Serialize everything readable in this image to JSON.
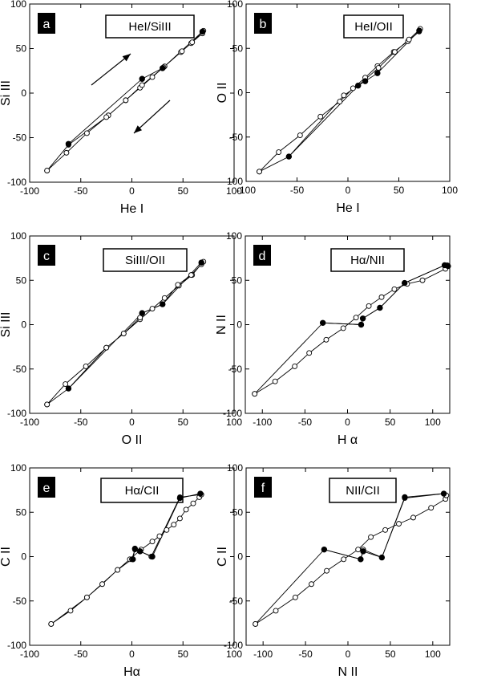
{
  "chart_data": [
    {
      "type": "scatter",
      "panel": "a",
      "title": "HeI/SiIII",
      "xlabel": "He I",
      "ylabel": "Si III",
      "xlim": [
        -100,
        100
      ],
      "ylim": [
        -100,
        100
      ],
      "xticks": [
        -100,
        -50,
        0,
        50,
        100
      ],
      "yticks": [
        -100,
        -50,
        0,
        50,
        100
      ],
      "arrows": [
        "up-right",
        "down-left"
      ],
      "series": [
        {
          "marker": "open",
          "points": [
            [
              -83,
              -87
            ],
            [
              -64,
              -67
            ],
            [
              -44,
              -45
            ],
            [
              -23,
              -25
            ],
            [
              -6,
              -8
            ],
            [
              8,
              6
            ],
            [
              20,
              18
            ],
            [
              32,
              30
            ],
            [
              48,
              46
            ],
            [
              58,
              56
            ],
            [
              70,
              70
            ],
            [
              69,
              67
            ],
            [
              59,
              57
            ],
            [
              49,
              47
            ],
            [
              31,
              29
            ],
            [
              10,
              9
            ],
            [
              -6,
              -8
            ],
            [
              -25,
              -27
            ],
            [
              -62,
              -58
            ],
            [
              -83,
              -87
            ]
          ]
        },
        {
          "marker": "filled",
          "points": [
            [
              -62,
              -57
            ],
            [
              10,
              16
            ],
            [
              30,
              28
            ],
            [
              69,
              69
            ]
          ]
        }
      ]
    },
    {
      "type": "scatter",
      "panel": "b",
      "title": "HeI/OII",
      "xlabel": "He I",
      "ylabel": "O II",
      "xlim": [
        -100,
        100
      ],
      "ylim": [
        -100,
        100
      ],
      "xticks": [
        -100,
        -50,
        0,
        50,
        100
      ],
      "yticks": [
        -100,
        -50,
        0,
        50,
        100
      ],
      "series": [
        {
          "marker": "open",
          "points": [
            [
              -87,
              -89
            ],
            [
              -68,
              -67
            ],
            [
              -47,
              -48
            ],
            [
              -27,
              -27
            ],
            [
              -8,
              -10
            ],
            [
              5,
              5
            ],
            [
              17,
              17
            ],
            [
              29,
              30
            ],
            [
              45,
              46
            ],
            [
              59,
              58
            ],
            [
              70,
              69
            ],
            [
              71,
              72
            ],
            [
              60,
              60
            ],
            [
              46,
              46
            ],
            [
              30,
              28
            ],
            [
              10,
              8
            ],
            [
              -4,
              -3
            ],
            [
              -58,
              -72
            ],
            [
              -87,
              -89
            ]
          ]
        },
        {
          "marker": "filled",
          "points": [
            [
              -58,
              -72
            ],
            [
              10,
              8
            ],
            [
              17,
              13
            ],
            [
              29,
              22
            ],
            [
              70,
              70
            ]
          ]
        }
      ]
    },
    {
      "type": "scatter",
      "panel": "c",
      "title": "SiIII/OII",
      "xlabel": "O II",
      "ylabel": "Si III",
      "xlim": [
        -100,
        100
      ],
      "ylim": [
        -100,
        100
      ],
      "xticks": [
        -100,
        -50,
        0,
        50,
        100
      ],
      "yticks": [
        -100,
        -50,
        0,
        50,
        100
      ],
      "series": [
        {
          "marker": "open",
          "points": [
            [
              -83,
              -90
            ],
            [
              -65,
              -67
            ],
            [
              -45,
              -47
            ],
            [
              -25,
              -26
            ],
            [
              -8,
              -10
            ],
            [
              8,
              6
            ],
            [
              20,
              18
            ],
            [
              32,
              30
            ],
            [
              46,
              44
            ],
            [
              59,
              56
            ],
            [
              70,
              71
            ],
            [
              68,
              68
            ],
            [
              58,
              56
            ],
            [
              45,
              45
            ],
            [
              30,
              23
            ],
            [
              10,
              13
            ],
            [
              8,
              8
            ],
            [
              -8,
              -10
            ],
            [
              -25,
              -26
            ],
            [
              -62,
              -72
            ],
            [
              -83,
              -90
            ]
          ]
        },
        {
          "marker": "filled",
          "points": [
            [
              -62,
              -72
            ],
            [
              10,
              13
            ],
            [
              30,
              23
            ],
            [
              68,
              70
            ]
          ]
        }
      ]
    },
    {
      "type": "scatter",
      "panel": "d",
      "title": "Hα/NII",
      "xlabel": "H α",
      "ylabel": "N II",
      "xlim": [
        -120,
        120
      ],
      "ylim": [
        -100,
        100
      ],
      "xticks": [
        -100,
        -50,
        0,
        50,
        100
      ],
      "yticks": [
        -100,
        -50,
        0,
        50,
        100
      ],
      "series": [
        {
          "marker": "open",
          "points": [
            [
              -109,
              -78
            ],
            [
              -85,
              -64
            ],
            [
              -62,
              -47
            ],
            [
              -45,
              -32
            ],
            [
              -25,
              -17
            ],
            [
              -5,
              -4
            ],
            [
              10,
              8
            ],
            [
              25,
              21
            ],
            [
              40,
              31
            ],
            [
              55,
              40
            ],
            [
              70,
              46
            ],
            [
              88,
              50
            ],
            [
              115,
              63
            ],
            [
              117,
              67
            ],
            [
              114,
              67
            ],
            [
              67,
              47
            ],
            [
              38,
              19
            ],
            [
              18,
              7
            ],
            [
              16,
              0
            ],
            [
              -29,
              2
            ],
            [
              -109,
              -78
            ]
          ]
        },
        {
          "marker": "filled",
          "points": [
            [
              -29,
              2
            ],
            [
              16,
              0
            ],
            [
              18,
              7
            ],
            [
              38,
              19
            ],
            [
              67,
              47
            ],
            [
              114,
              67
            ],
            [
              118,
              66
            ]
          ]
        }
      ]
    },
    {
      "type": "scatter",
      "panel": "e",
      "title": "Hα/CII",
      "xlabel": "Hα",
      "ylabel": "C II",
      "xlim": [
        -100,
        100
      ],
      "ylim": [
        -100,
        100
      ],
      "xticks": [
        -100,
        -50,
        0,
        50,
        100
      ],
      "yticks": [
        -100,
        -50,
        0,
        50,
        100
      ],
      "series": [
        {
          "marker": "open",
          "points": [
            [
              -79,
              -76
            ],
            [
              -60,
              -61
            ],
            [
              -44,
              -46
            ],
            [
              -29,
              -31
            ],
            [
              -14,
              -15
            ],
            [
              -2,
              -3
            ],
            [
              9,
              8
            ],
            [
              20,
              17
            ],
            [
              27,
              23
            ],
            [
              34,
              30
            ],
            [
              41,
              36
            ],
            [
              47,
              43
            ],
            [
              53,
              53
            ],
            [
              60,
              60
            ],
            [
              66,
              67
            ],
            [
              68,
              70
            ],
            [
              47,
              67
            ],
            [
              19,
              0
            ],
            [
              8,
              6
            ],
            [
              3,
              8
            ],
            [
              0,
              -3
            ],
            [
              -14,
              -15
            ],
            [
              -44,
              -46
            ],
            [
              -79,
              -76
            ]
          ]
        },
        {
          "marker": "filled",
          "points": [
            [
              1,
              -3
            ],
            [
              3,
              9
            ],
            [
              8,
              6
            ],
            [
              20,
              0
            ],
            [
              47,
              66
            ],
            [
              67,
              71
            ]
          ]
        }
      ]
    },
    {
      "type": "scatter",
      "panel": "f",
      "title": "NII/CII",
      "xlabel": "N II",
      "ylabel": "C II",
      "xlim": [
        -120,
        120
      ],
      "ylim": [
        -100,
        100
      ],
      "xticks": [
        -100,
        -50,
        0,
        50,
        100
      ],
      "yticks": [
        -100,
        -50,
        0,
        50,
        100
      ],
      "series": [
        {
          "marker": "open",
          "points": [
            [
              -109,
              -76
            ],
            [
              -85,
              -61
            ],
            [
              -62,
              -46
            ],
            [
              -43,
              -31
            ],
            [
              -25,
              -16
            ],
            [
              -5,
              -3
            ],
            [
              12,
              8
            ],
            [
              27,
              22
            ],
            [
              44,
              30
            ],
            [
              60,
              37
            ],
            [
              77,
              44
            ],
            [
              98,
              55
            ],
            [
              115,
              65
            ],
            [
              116,
              69
            ],
            [
              113,
              71
            ],
            [
              67,
              66
            ],
            [
              40,
              -1
            ],
            [
              18,
              8
            ],
            [
              15,
              -3
            ],
            [
              -28,
              8
            ],
            [
              -109,
              -76
            ]
          ]
        },
        {
          "marker": "filled",
          "points": [
            [
              -28,
              8
            ],
            [
              15,
              -3
            ],
            [
              18,
              6
            ],
            [
              40,
              -1
            ],
            [
              67,
              67
            ],
            [
              113,
              71
            ]
          ]
        }
      ]
    }
  ]
}
